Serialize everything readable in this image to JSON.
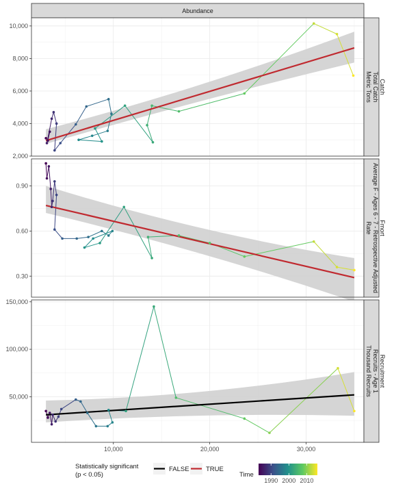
{
  "chart_data": {
    "type": "scatter",
    "top_strip": "Abundance",
    "x_ticks": [
      "10,000",
      "20,000",
      "30,000"
    ],
    "xlim": [
      1500,
      36000
    ],
    "panels": [
      {
        "strip_lines": [
          "Catch",
          "Total Catch",
          "Metric Tons"
        ],
        "ylim": [
          2000,
          10500
        ],
        "y_ticks": [
          {
            "value": 2000,
            "label": "2,000"
          },
          {
            "value": 4000,
            "label": "4,000"
          },
          {
            "value": 6000,
            "label": "6,000"
          },
          {
            "value": 8000,
            "label": "8,000"
          },
          {
            "value": 10000,
            "label": "10,000"
          }
        ],
        "fit": {
          "significant": true,
          "start": [
            3000,
            2950
          ],
          "end": [
            35000,
            8650
          ],
          "band_start": [
            200,
            700
          ],
          "band_end": [
            900,
            1000
          ]
        },
        "points": [
          {
            "x": 3000,
            "y": 3100,
            "year": 1983
          },
          {
            "x": 3200,
            "y": 2950,
            "year": 1984
          },
          {
            "x": 3400,
            "y": 3500,
            "year": 1985
          },
          {
            "x": 3100,
            "y": 2800,
            "year": 1986
          },
          {
            "x": 3600,
            "y": 4300,
            "year": 1987
          },
          {
            "x": 3800,
            "y": 4700,
            "year": 1988
          },
          {
            "x": 4100,
            "y": 4000,
            "year": 1989
          },
          {
            "x": 3900,
            "y": 2350,
            "year": 1990
          },
          {
            "x": 4500,
            "y": 2800,
            "year": 1991
          },
          {
            "x": 6100,
            "y": 3950,
            "year": 1993
          },
          {
            "x": 7200,
            "y": 5050,
            "year": 1994
          },
          {
            "x": 9500,
            "y": 5500,
            "year": 1995
          },
          {
            "x": 9800,
            "y": 4600,
            "year": 1996
          },
          {
            "x": 9400,
            "y": 3550,
            "year": 1997
          },
          {
            "x": 7800,
            "y": 3250,
            "year": 1998
          },
          {
            "x": 6400,
            "y": 3000,
            "year": 1999
          },
          {
            "x": 8800,
            "y": 2900,
            "year": 2000
          },
          {
            "x": 8100,
            "y": 3700,
            "year": 2001
          },
          {
            "x": 11200,
            "y": 5100,
            "year": 2002
          },
          {
            "x": 14100,
            "y": 2850,
            "year": 2003
          },
          {
            "x": 13500,
            "y": 3900,
            "year": 2004
          },
          {
            "x": 14000,
            "y": 5100,
            "year": 2005
          },
          {
            "x": 16800,
            "y": 4750,
            "year": 2006
          },
          {
            "x": 23600,
            "y": 5850,
            "year": 2008
          },
          {
            "x": 30800,
            "y": 10150,
            "year": 2013
          },
          {
            "x": 33200,
            "y": 9500,
            "year": 2014
          },
          {
            "x": 34900,
            "y": 6950,
            "year": 2016
          }
        ]
      },
      {
        "strip_lines": [
          "Fmort",
          "Average F - Ages 6 - 7 - Retrospective Adjusted",
          "Rate"
        ],
        "ylim": [
          0.16,
          1.08
        ],
        "y_ticks": [
          {
            "value": 0.3,
            "label": "0.30"
          },
          {
            "value": 0.6,
            "label": "0.60"
          },
          {
            "value": 0.9,
            "label": "0.90"
          }
        ],
        "fit": {
          "significant": true,
          "start": [
            3000,
            0.77
          ],
          "end": [
            35000,
            0.29
          ],
          "band_start": [
            0.05,
            0.13
          ],
          "band_end": [
            0.16,
            0.13
          ]
        },
        "points": [
          {
            "x": 3000,
            "y": 1.05,
            "year": 1983
          },
          {
            "x": 3100,
            "y": 0.95,
            "year": 1984
          },
          {
            "x": 3300,
            "y": 1.03,
            "year": 1985
          },
          {
            "x": 3500,
            "y": 0.88,
            "year": 1986
          },
          {
            "x": 3600,
            "y": 0.76,
            "year": 1987
          },
          {
            "x": 3700,
            "y": 0.8,
            "year": 1988
          },
          {
            "x": 3900,
            "y": 0.93,
            "year": 1989
          },
          {
            "x": 4100,
            "y": 0.84,
            "year": 1990
          },
          {
            "x": 3900,
            "y": 0.61,
            "year": 1991
          },
          {
            "x": 4700,
            "y": 0.55,
            "year": 1993
          },
          {
            "x": 6200,
            "y": 0.55,
            "year": 1994
          },
          {
            "x": 7400,
            "y": 0.56,
            "year": 1995
          },
          {
            "x": 8800,
            "y": 0.6,
            "year": 1996
          },
          {
            "x": 9500,
            "y": 0.57,
            "year": 1997
          },
          {
            "x": 9900,
            "y": 0.6,
            "year": 1998
          },
          {
            "x": 7900,
            "y": 0.55,
            "year": 1999
          },
          {
            "x": 7000,
            "y": 0.49,
            "year": 2000
          },
          {
            "x": 8600,
            "y": 0.52,
            "year": 2001
          },
          {
            "x": 11100,
            "y": 0.76,
            "year": 2002
          },
          {
            "x": 14000,
            "y": 0.42,
            "year": 2003
          },
          {
            "x": 13600,
            "y": 0.56,
            "year": 2004
          },
          {
            "x": 16800,
            "y": 0.57,
            "year": 2006
          },
          {
            "x": 20000,
            "y": 0.52,
            "year": 2007
          },
          {
            "x": 23600,
            "y": 0.43,
            "year": 2008
          },
          {
            "x": 30800,
            "y": 0.53,
            "year": 2013
          },
          {
            "x": 33200,
            "y": 0.36,
            "year": 2014
          },
          {
            "x": 35000,
            "y": 0.34,
            "year": 2016
          }
        ]
      },
      {
        "strip_lines": [
          "Recruitment",
          "Recruits - Age 1",
          "Thousand Recruits"
        ],
        "ylim": [
          2000,
          152000
        ],
        "y_ticks": [
          {
            "value": 50000,
            "label": "50,000"
          },
          {
            "value": 100000,
            "label": "100,000"
          },
          {
            "value": 150000,
            "label": "150,000"
          }
        ],
        "fit": {
          "significant": false,
          "start": [
            3000,
            31000
          ],
          "end": [
            35000,
            52000
          ],
          "band_start": [
            8000,
            15000
          ],
          "band_end": [
            22000,
            24000
          ]
        },
        "points": [
          {
            "x": 3000,
            "y": 35000,
            "year": 1983
          },
          {
            "x": 3200,
            "y": 28000,
            "year": 1984
          },
          {
            "x": 3400,
            "y": 33000,
            "year": 1985
          },
          {
            "x": 3600,
            "y": 21000,
            "year": 1986
          },
          {
            "x": 3700,
            "y": 31000,
            "year": 1987
          },
          {
            "x": 4000,
            "y": 24000,
            "year": 1988
          },
          {
            "x": 4300,
            "y": 29000,
            "year": 1989
          },
          {
            "x": 4600,
            "y": 37000,
            "year": 1990
          },
          {
            "x": 6100,
            "y": 47000,
            "year": 1993
          },
          {
            "x": 6600,
            "y": 45000,
            "year": 1994
          },
          {
            "x": 7300,
            "y": 33000,
            "year": 1995
          },
          {
            "x": 8200,
            "y": 19000,
            "year": 1996
          },
          {
            "x": 9400,
            "y": 19000,
            "year": 1997
          },
          {
            "x": 9900,
            "y": 23000,
            "year": 1998
          },
          {
            "x": 9500,
            "y": 36000,
            "year": 1999
          },
          {
            "x": 11300,
            "y": 35000,
            "year": 2002
          },
          {
            "x": 14200,
            "y": 145000,
            "year": 2003
          },
          {
            "x": 16500,
            "y": 49000,
            "year": 2006
          },
          {
            "x": 23600,
            "y": 27000,
            "year": 2008
          },
          {
            "x": 26200,
            "y": 12000,
            "year": 2010
          },
          {
            "x": 33300,
            "y": 80000,
            "year": 2014
          },
          {
            "x": 35000,
            "y": 35000,
            "year": 2016
          }
        ]
      }
    ],
    "legend": {
      "significance_title": [
        "Statistically significant",
        "(p < 0.05)"
      ],
      "significance_entries": [
        {
          "label": "FALSE",
          "color": "#000000"
        },
        {
          "label": "TRUE",
          "color": "#c0292f"
        }
      ],
      "time_title": "Time",
      "time_ticks": [
        {
          "value": 1990,
          "label": "1990"
        },
        {
          "value": 2000,
          "label": "2000"
        },
        {
          "value": 2010,
          "label": "2010"
        }
      ],
      "time_range": [
        1983,
        2016
      ],
      "placement": "bottom"
    },
    "colors": {
      "trend_true": "#c0292f",
      "trend_false": "#000000",
      "band": "#d0d0d0",
      "strip_bg": "#d9d9d9",
      "grid": "#ebebeb",
      "viridis": [
        "#440154",
        "#3b528b",
        "#21918c",
        "#5ec962",
        "#fde725"
      ]
    }
  }
}
